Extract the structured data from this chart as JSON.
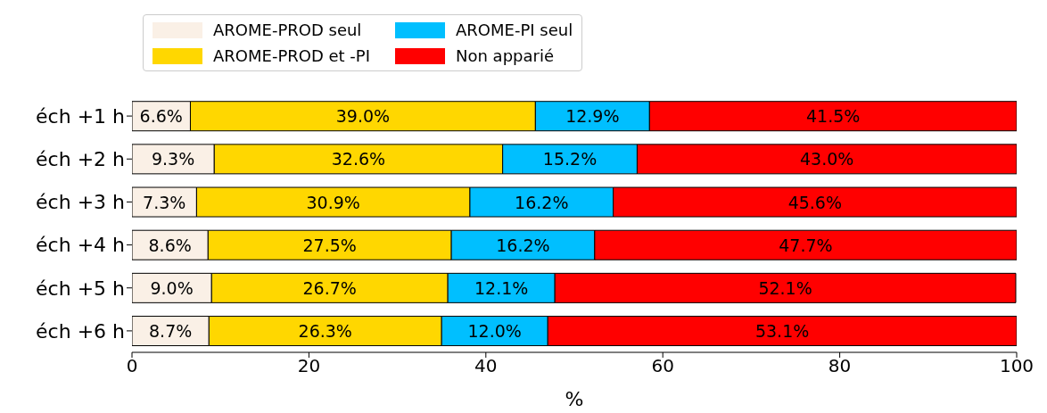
{
  "chart_data": {
    "type": "bar",
    "orientation": "horizontal",
    "stacked": true,
    "xlabel": "%",
    "categories": [
      "éch +1 h",
      "éch +2 h",
      "éch +3 h",
      "éch +4 h",
      "éch +5 h",
      "éch +6 h"
    ],
    "series": [
      {
        "name": "AROME-PROD seul",
        "color": "#faf0e6",
        "values": [
          6.6,
          9.3,
          7.3,
          8.6,
          9.0,
          8.7
        ],
        "value_labels": [
          "6.6%",
          "9.3%",
          "7.3%",
          "8.6%",
          "9.0%",
          "8.7%"
        ]
      },
      {
        "name": "AROME-PROD et -PI",
        "color": "#ffd700",
        "values": [
          39.0,
          32.6,
          30.9,
          27.5,
          26.7,
          26.3
        ],
        "value_labels": [
          "39.0%",
          "32.6%",
          "30.9%",
          "27.5%",
          "26.7%",
          "26.3%"
        ]
      },
      {
        "name": "AROME-PI seul",
        "color": "#00bfff",
        "values": [
          12.9,
          15.2,
          16.2,
          16.2,
          12.1,
          12.0
        ],
        "value_labels": [
          "12.9%",
          "15.2%",
          "16.2%",
          "16.2%",
          "12.1%",
          "12.0%"
        ]
      },
      {
        "name": "Non apparié",
        "color": "#ff0000",
        "values": [
          41.5,
          43.0,
          45.6,
          47.7,
          52.1,
          53.1
        ],
        "value_labels": [
          "41.5%",
          "43.0%",
          "45.6%",
          "47.7%",
          "52.1%",
          "53.1%"
        ]
      }
    ],
    "xlim": [
      0,
      100
    ],
    "xticks": [
      0,
      20,
      40,
      60,
      80,
      100
    ],
    "legend": "top",
    "grid": false
  }
}
